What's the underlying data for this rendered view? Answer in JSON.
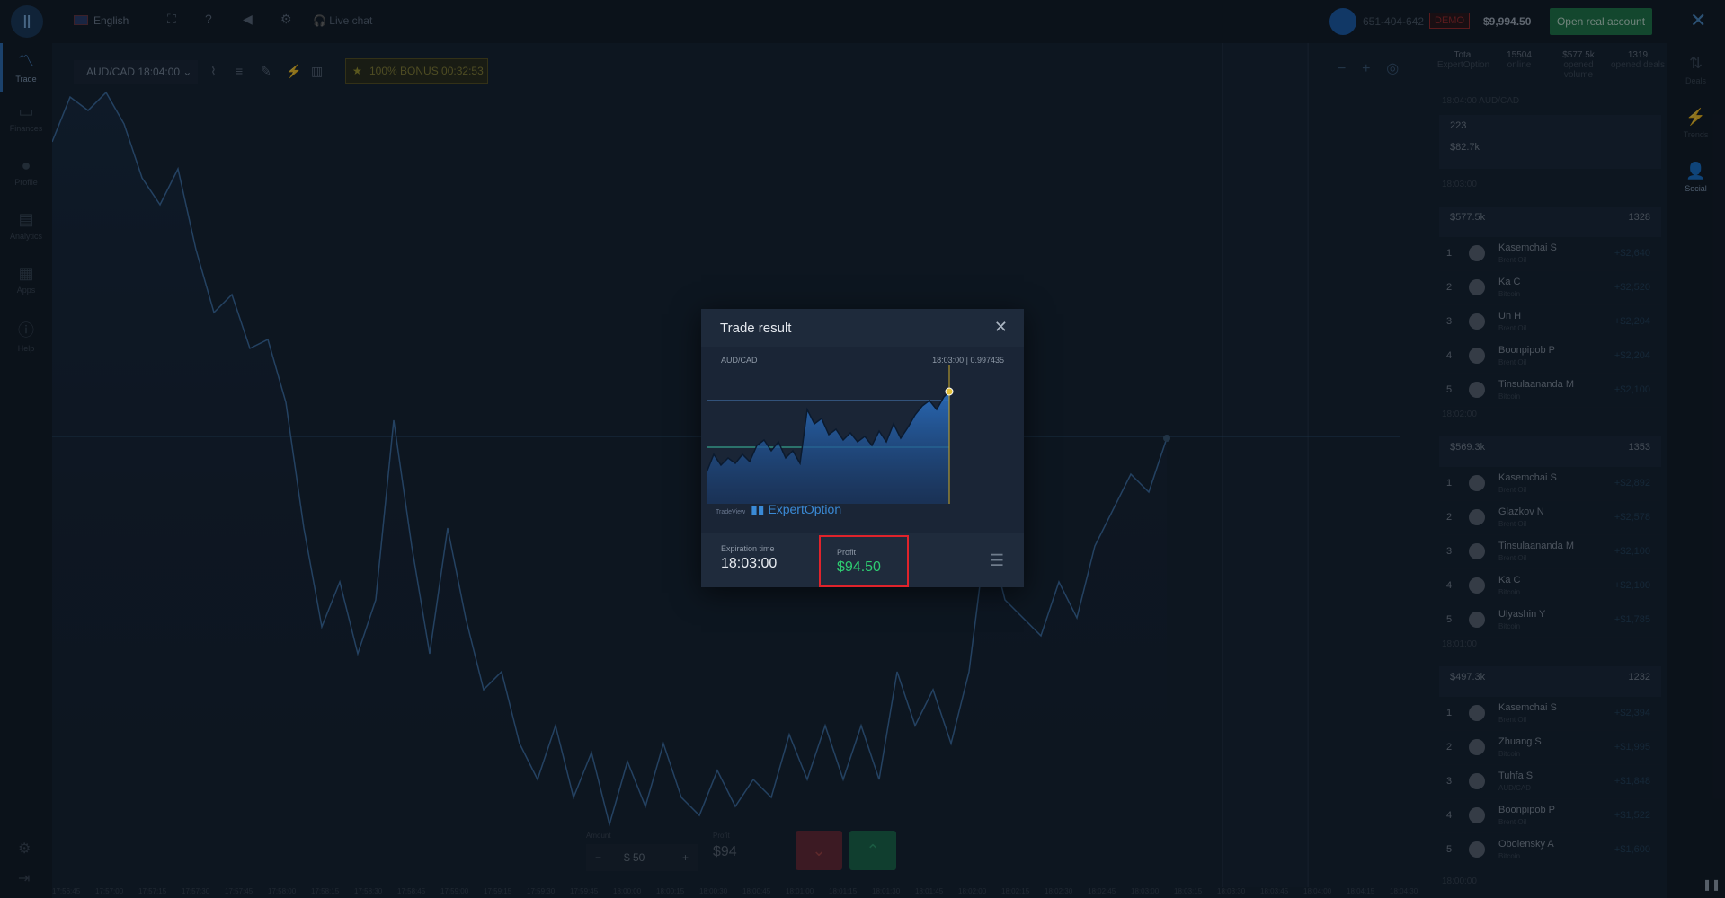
{
  "topbar": {
    "language": "English",
    "live_chat": "Live chat",
    "user_id": "651-404-642",
    "account_type": "DEMO",
    "balance": "$9,994.50",
    "open_real_label": "Open real account"
  },
  "leftnav": [
    {
      "label": "Trade",
      "icon": "chart-line-icon"
    },
    {
      "label": "Finances",
      "icon": "wallet-icon"
    },
    {
      "label": "Profile",
      "icon": "user-icon"
    },
    {
      "label": "Analytics",
      "icon": "book-icon"
    },
    {
      "label": "Apps",
      "icon": "grid-icon"
    },
    {
      "label": "Help",
      "icon": "info-icon"
    }
  ],
  "chart_toolbar": {
    "pair": "AUD/CAD 18:04:00",
    "bonus": "100% BONUS 00:32:53"
  },
  "right_stats": [
    {
      "label": "Total",
      "sub": "ExpertOption"
    },
    {
      "value": "15504",
      "label": "online"
    },
    {
      "value": "$577.5k",
      "label": "opened volume"
    },
    {
      "value": "1319",
      "label": "opened deals"
    }
  ],
  "right_panel": {
    "pair_header": "18:04:00 AUD/CAD",
    "opened_deals": "223",
    "volume": "$82.7k",
    "groups": [
      {
        "time": "18:03:00",
        "volume": "$577.5k",
        "deals": "1328",
        "rows": [
          {
            "rank": "1",
            "name": "Kasemchai S",
            "asset": "Brent Oil",
            "profit": "+$2,640"
          },
          {
            "rank": "2",
            "name": "Ka C",
            "asset": "Bitcoin",
            "profit": "+$2,520"
          },
          {
            "rank": "3",
            "name": "Un H",
            "asset": "Brent Oil",
            "profit": "+$2,204"
          },
          {
            "rank": "4",
            "name": "Boonpipob P",
            "asset": "Brent Oil",
            "profit": "+$2,204"
          },
          {
            "rank": "5",
            "name": "Tinsulaananda M",
            "asset": "Bitcoin",
            "profit": "+$2,100"
          }
        ]
      },
      {
        "time": "18:02:00",
        "volume": "$569.3k",
        "deals": "1353",
        "rows": [
          {
            "rank": "1",
            "name": "Kasemchai S",
            "asset": "Brent Oil",
            "profit": "+$2,892"
          },
          {
            "rank": "2",
            "name": "Glazkov N",
            "asset": "Brent Oil",
            "profit": "+$2,578"
          },
          {
            "rank": "3",
            "name": "Tinsulaananda M",
            "asset": "Brent Oil",
            "profit": "+$2,100"
          },
          {
            "rank": "4",
            "name": "Ka C",
            "asset": "Bitcoin",
            "profit": "+$2,100"
          },
          {
            "rank": "5",
            "name": "Ulyashin Y",
            "asset": "Bitcoin",
            "profit": "+$1,785"
          }
        ]
      },
      {
        "time": "18:01:00",
        "volume": "$497.3k",
        "deals": "1232",
        "rows": [
          {
            "rank": "1",
            "name": "Kasemchai S",
            "asset": "Brent Oil",
            "profit": "+$2,394"
          },
          {
            "rank": "2",
            "name": "Zhuang S",
            "asset": "Bitcoin",
            "profit": "+$1,995"
          },
          {
            "rank": "3",
            "name": "Tuhfa S",
            "asset": "AUD/CAD",
            "profit": "+$1,848"
          },
          {
            "rank": "4",
            "name": "Boonpipob P",
            "asset": "Brent Oil",
            "profit": "+$1,522"
          },
          {
            "rank": "5",
            "name": "Obolensky A",
            "asset": "Bitcoin",
            "profit": "+$1,600"
          }
        ]
      }
    ],
    "next_time": "18:00:00"
  },
  "side_icons": [
    {
      "label": "Deals",
      "icon": "arrows-updown-icon"
    },
    {
      "label": "Trends",
      "icon": "lightning-icon"
    },
    {
      "label": "Social",
      "icon": "add-user-icon"
    }
  ],
  "trade_panel": {
    "amount_label": "Amount",
    "amount_value": "$ 50",
    "profit_label": "Profit",
    "profit_value": "$94"
  },
  "xaxis_times": [
    "17:56:45",
    "17:57:00",
    "17:57:15",
    "17:57:30",
    "17:57:45",
    "17:58:00",
    "17:58:15",
    "17:58:30",
    "17:58:45",
    "17:59:00",
    "17:59:15",
    "17:59:30",
    "17:59:45",
    "18:00:00",
    "18:00:15",
    "18:00:30",
    "18:00:45",
    "18:01:00",
    "18:01:15",
    "18:01:30",
    "18:01:45",
    "18:02:00",
    "18:02:15",
    "18:02:30",
    "18:02:45",
    "18:03:00",
    "18:03:15",
    "18:03:30",
    "18:03:45",
    "18:04:00",
    "18:04:15",
    "18:04:30"
  ],
  "modal": {
    "title": "Trade result",
    "pair": "AUD/CAD",
    "time_price": "18:03:00 | 0.997435",
    "brand": "ExpertOption",
    "brand_prefix": "TradeView",
    "expiration_label": "Expiration time",
    "expiration_value": "18:03:00",
    "profit_label": "Profit",
    "profit_value": "$94.50"
  },
  "colors": {
    "accent": "#2f6fb8",
    "profit_green": "#2ecc71",
    "highlight_red": "#e0232b",
    "demo_red": "#a12b2b",
    "open_real_green": "#1f7a49"
  }
}
